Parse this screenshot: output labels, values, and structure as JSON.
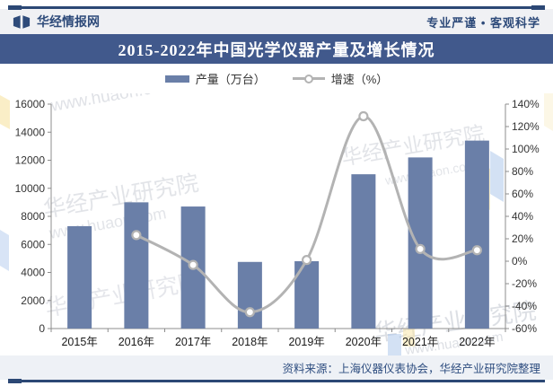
{
  "header": {
    "brand": "华经情报网",
    "tagline": "专业严谨 • 客观科学"
  },
  "title": "2015-2022年中国光学仪器产量及增长情况",
  "legend": {
    "production": "产量（万台）",
    "growth": "增速（%）"
  },
  "source": "资料来源：上海仪器仪表协会，华经产业研究院整理",
  "watermark": {
    "name_text": "华经产业研究院",
    "url_text": "www.huaon.com"
  },
  "colors": {
    "bar": "#6A7FA8",
    "line": "#B3B3B3",
    "marker_fill": "#FFFFFF",
    "title_bar_bg": "#41598C",
    "accent_navy": "#2E4B7A",
    "frame_line": "#2C4875",
    "band_bg": "#F0F1F4",
    "footer_bg": "#EEF1F6",
    "axis": "#8C8C8C",
    "tick_text": "#333333",
    "xlabel_text": "#1A1A1A",
    "watermark_gray": "#C6CAD3",
    "watermark_yellow": "#F7E3A1",
    "watermark_blue": "#A8C4EA"
  },
  "chart_data": {
    "type": "bar+line combo",
    "categories": [
      "2015年",
      "2016年",
      "2017年",
      "2018年",
      "2019年",
      "2020年",
      "2021年",
      "2022年"
    ],
    "series": [
      {
        "name": "产量（万台）",
        "type": "bar",
        "axis": "left",
        "values": [
          7300,
          9000,
          8700,
          4750,
          4800,
          11000,
          12200,
          13400
        ]
      },
      {
        "name": "增速（%）",
        "type": "line",
        "axis": "right",
        "values": [
          null,
          23.3,
          -3.3,
          -45.4,
          1.1,
          129.2,
          10.9,
          9.8
        ]
      }
    ],
    "left_axis": {
      "min": 0,
      "max": 16000,
      "step": 2000,
      "ticks": [
        "0",
        "2000",
        "4000",
        "6000",
        "8000",
        "10000",
        "12000",
        "14000",
        "16000"
      ]
    },
    "right_axis": {
      "min": -60,
      "max": 140,
      "step": 20,
      "ticks": [
        "-60%",
        "-40%",
        "-20%",
        "0%",
        "20%",
        "40%",
        "60%",
        "80%",
        "100%",
        "120%",
        "140%"
      ]
    },
    "legend_position": "top-center",
    "grid": false
  }
}
